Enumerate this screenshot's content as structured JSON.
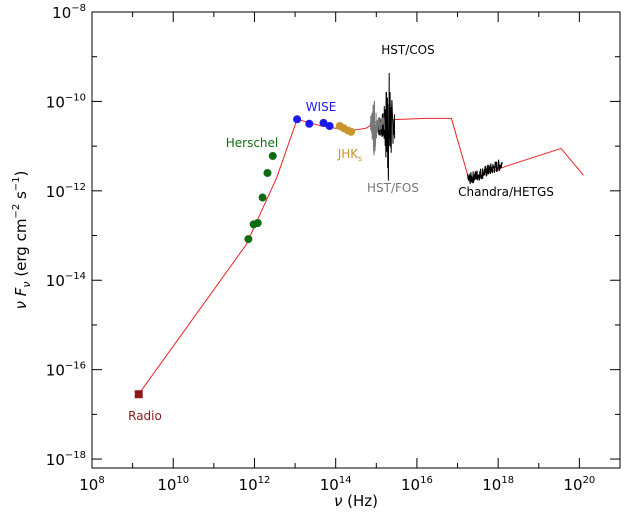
{
  "chart_data": {
    "type": "scatter",
    "title": "",
    "xlabel": "ν (Hz)",
    "ylabel": "ν Fν (erg cm⁻² s⁻¹)",
    "xlabel_parts": {
      "symbol": "ν",
      "unit": "(Hz)"
    },
    "ylabel_parts": {
      "symbol": "ν F",
      "sub": "ν",
      "unit_open": "(erg cm",
      "exp1": "−2",
      "mid": " s",
      "exp2": "−1",
      "unit_close": ")"
    },
    "xscale": "log",
    "yscale": "log",
    "xlim_log10": [
      8,
      21
    ],
    "ylim_log10": [
      -18.2,
      -8
    ],
    "x_ticks": [
      {
        "base": "10",
        "exp": "8",
        "value": 8
      },
      {
        "base": "10",
        "exp": "10",
        "value": 10
      },
      {
        "base": "10",
        "exp": "12",
        "value": 12
      },
      {
        "base": "10",
        "exp": "14",
        "value": 14
      },
      {
        "base": "10",
        "exp": "16",
        "value": 16
      },
      {
        "base": "10",
        "exp": "18",
        "value": 18
      },
      {
        "base": "10",
        "exp": "20",
        "value": 20
      }
    ],
    "y_ticks": [
      {
        "base": "10",
        "exp": "−18",
        "value": -18
      },
      {
        "base": "10",
        "exp": "−16",
        "value": -16
      },
      {
        "base": "10",
        "exp": "−14",
        "value": -14
      },
      {
        "base": "10",
        "exp": "−12",
        "value": -12
      },
      {
        "base": "10",
        "exp": "−10",
        "value": -10
      },
      {
        "base": "10",
        "exp": "−8",
        "value": -8
      }
    ],
    "grid": false,
    "legend": "none",
    "model_line": {
      "color": "#ee2222",
      "points_log10": [
        [
          9.15,
          -16.55
        ],
        [
          11.8,
          -13.2
        ],
        [
          12.55,
          -11.7
        ],
        [
          13.05,
          -10.4
        ],
        [
          13.65,
          -10.55
        ],
        [
          14.0,
          -10.6
        ],
        [
          14.4,
          -10.65
        ],
        [
          14.75,
          -10.6
        ],
        [
          15.05,
          -10.42
        ],
        [
          16.2,
          -10.38
        ],
        [
          16.85,
          -10.38
        ],
        [
          17.3,
          -11.8
        ],
        [
          17.5,
          -11.7
        ],
        [
          17.9,
          -11.55
        ],
        [
          18.2,
          -11.45
        ],
        [
          19.55,
          -11.05
        ],
        [
          20.1,
          -11.65
        ]
      ]
    },
    "series": [
      {
        "name": "Radio",
        "color": "#8b1a1a",
        "marker": "square",
        "points_log10": [
          [
            9.15,
            -16.55
          ]
        ]
      },
      {
        "name": "Herschel",
        "color": "#0f6b14",
        "marker": "circle",
        "points_log10": [
          [
            11.85,
            -13.08
          ],
          [
            11.98,
            -12.75
          ],
          [
            12.08,
            -12.72
          ],
          [
            12.2,
            -12.15
          ],
          [
            12.32,
            -11.6
          ],
          [
            12.45,
            -11.22
          ]
        ]
      },
      {
        "name": "WISE",
        "color": "#1a1aee",
        "marker": "circle",
        "points_log10": [
          [
            13.05,
            -10.4
          ],
          [
            13.35,
            -10.5
          ],
          [
            13.7,
            -10.48
          ],
          [
            13.85,
            -10.55
          ]
        ]
      },
      {
        "name": "JHKs",
        "label_main": "JHK",
        "label_sub": "s",
        "color": "#c8962a",
        "marker": "circle",
        "points_log10": [
          [
            14.1,
            -10.55
          ],
          [
            14.2,
            -10.6
          ],
          [
            14.3,
            -10.65
          ],
          [
            14.38,
            -10.68
          ]
        ]
      }
    ],
    "spectra": [
      {
        "name": "HST/COS",
        "color": "#000000",
        "x_range_log10": [
          15.05,
          15.45
        ]
      },
      {
        "name": "HST/FOS",
        "color": "#777777",
        "x_range_log10": [
          14.85,
          15.2
        ]
      },
      {
        "name": "Chandra/HETGS",
        "color": "#000000",
        "x_range_log10": [
          17.25,
          18.1
        ]
      }
    ],
    "annotations": [
      {
        "text": "Radio",
        "color": "#8b1a1a"
      },
      {
        "text": "Herschel",
        "color": "#0f6b14"
      },
      {
        "text": "WISE",
        "color": "#1a1aee"
      },
      {
        "text_main": "JHK",
        "text_sub": "s",
        "color": "#c8962a"
      },
      {
        "text": "HST/COS",
        "color": "#000000"
      },
      {
        "text": "HST/FOS",
        "color": "#777777"
      },
      {
        "text": "Chandra/HETGS",
        "color": "#000000"
      }
    ]
  }
}
